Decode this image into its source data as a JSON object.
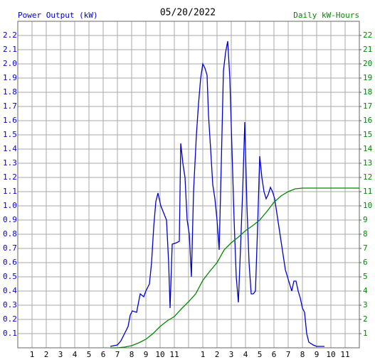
{
  "chart_data": {
    "type": "line",
    "title": "05/20/2022",
    "y_label": "Power Output (kW)",
    "y2_label": "Daily kW-Hours",
    "xlim": [
      0,
      24
    ],
    "ylim": [
      0,
      2.3
    ],
    "y2lim": [
      0,
      23
    ],
    "grid": true,
    "xticks": [
      1,
      2,
      3,
      4,
      5,
      6,
      7,
      8,
      9,
      10,
      11,
      {
        "value": 12,
        "label": null
      },
      {
        "value": 13,
        "label": "1"
      },
      {
        "value": 14,
        "label": "2"
      },
      {
        "value": 15,
        "label": "3"
      },
      {
        "value": 16,
        "label": "4"
      },
      {
        "value": 17,
        "label": "5"
      },
      {
        "value": 18,
        "label": "6"
      },
      {
        "value": 19,
        "label": "7"
      },
      {
        "value": 20,
        "label": "8"
      },
      {
        "value": 21,
        "label": "9"
      },
      {
        "value": 22,
        "label": "10"
      },
      {
        "value": 23,
        "label": "11"
      }
    ],
    "yticks": [
      0.1,
      0.2,
      0.3,
      0.4,
      0.5,
      0.6,
      0.7,
      0.8,
      0.9,
      {
        "value": 1,
        "label": "1.0"
      },
      1.1,
      1.2,
      1.3,
      1.4,
      1.5,
      1.6,
      1.7,
      1.8,
      1.9,
      {
        "value": 2,
        "label": "2.0"
      },
      2.1,
      2.2
    ],
    "y2ticks": [
      1,
      2,
      3,
      4,
      5,
      6,
      7,
      8,
      9,
      10,
      11,
      12,
      13,
      14,
      15,
      16,
      17,
      18,
      19,
      20,
      21,
      22
    ],
    "series": [
      {
        "name": "Power Output (kW)",
        "color": "#0000cc",
        "axis": "y",
        "x": [
          6.5,
          7,
          7.25,
          7.5,
          7.75,
          7.9,
          8.05,
          8.35,
          8.6,
          8.85,
          9,
          9.25,
          9.4,
          9.55,
          9.7,
          9.85,
          10.05,
          10.25,
          10.45,
          10.6,
          10.7,
          10.85,
          11.15,
          11.35,
          11.45,
          11.6,
          11.75,
          11.9,
          12.05,
          12.2,
          12.35,
          12.55,
          12.7,
          12.85,
          13,
          13.15,
          13.3,
          13.4,
          13.55,
          13.7,
          13.85,
          14,
          14.15,
          14.3,
          14.45,
          14.6,
          14.75,
          14.9,
          15.05,
          15.2,
          15.35,
          15.5,
          15.65,
          15.8,
          15.95,
          16.1,
          16.25,
          16.4,
          16.55,
          16.7,
          16.85,
          17,
          17.15,
          17.3,
          17.45,
          17.6,
          17.75,
          17.9,
          18.05,
          18.2,
          18.35,
          18.5,
          18.65,
          18.8,
          18.95,
          19.1,
          19.25,
          19.4,
          19.55,
          19.7,
          19.85,
          20,
          20.15,
          20.3,
          20.45,
          20.6,
          20.75,
          21,
          21.55
        ],
        "values": [
          0.01,
          0.02,
          0.05,
          0.1,
          0.15,
          0.23,
          0.26,
          0.25,
          0.38,
          0.36,
          0.4,
          0.45,
          0.6,
          0.85,
          1.03,
          1.09,
          1.0,
          0.95,
          0.9,
          0.6,
          0.28,
          0.73,
          0.74,
          0.75,
          1.44,
          1.3,
          1.2,
          0.9,
          0.8,
          0.5,
          1.1,
          1.5,
          1.72,
          1.9,
          2.0,
          1.97,
          1.92,
          1.64,
          1.4,
          1.15,
          1.05,
          0.9,
          0.69,
          1.3,
          1.95,
          2.08,
          2.16,
          1.9,
          1.4,
          0.9,
          0.5,
          0.32,
          0.7,
          1.1,
          1.59,
          1.0,
          0.6,
          0.38,
          0.38,
          0.4,
          0.85,
          1.35,
          1.2,
          1.1,
          1.05,
          1.08,
          1.13,
          1.1,
          1.05,
          0.95,
          0.85,
          0.75,
          0.65,
          0.55,
          0.5,
          0.45,
          0.4,
          0.47,
          0.47,
          0.4,
          0.35,
          0.28,
          0.25,
          0.1,
          0.04,
          0.03,
          0.02,
          0.01,
          0.01
        ]
      },
      {
        "name": "Daily kW-Hours",
        "color": "#008800",
        "axis": "y2",
        "x": [
          6.5,
          7,
          7.5,
          8,
          8.5,
          9,
          9.5,
          10,
          10.5,
          11,
          11.5,
          12,
          12.5,
          13,
          13.5,
          14,
          14.5,
          15,
          15.5,
          16,
          16.5,
          17,
          17.5,
          18,
          18.5,
          19,
          19.5,
          20,
          24
        ],
        "values": [
          0,
          0,
          0.05,
          0.15,
          0.35,
          0.6,
          1.0,
          1.5,
          1.9,
          2.2,
          2.75,
          3.25,
          3.8,
          4.75,
          5.4,
          6,
          6.9,
          7.4,
          7.8,
          8.25,
          8.6,
          9,
          9.6,
          10.25,
          10.7,
          11,
          11.2,
          11.25,
          11.25
        ]
      }
    ]
  }
}
